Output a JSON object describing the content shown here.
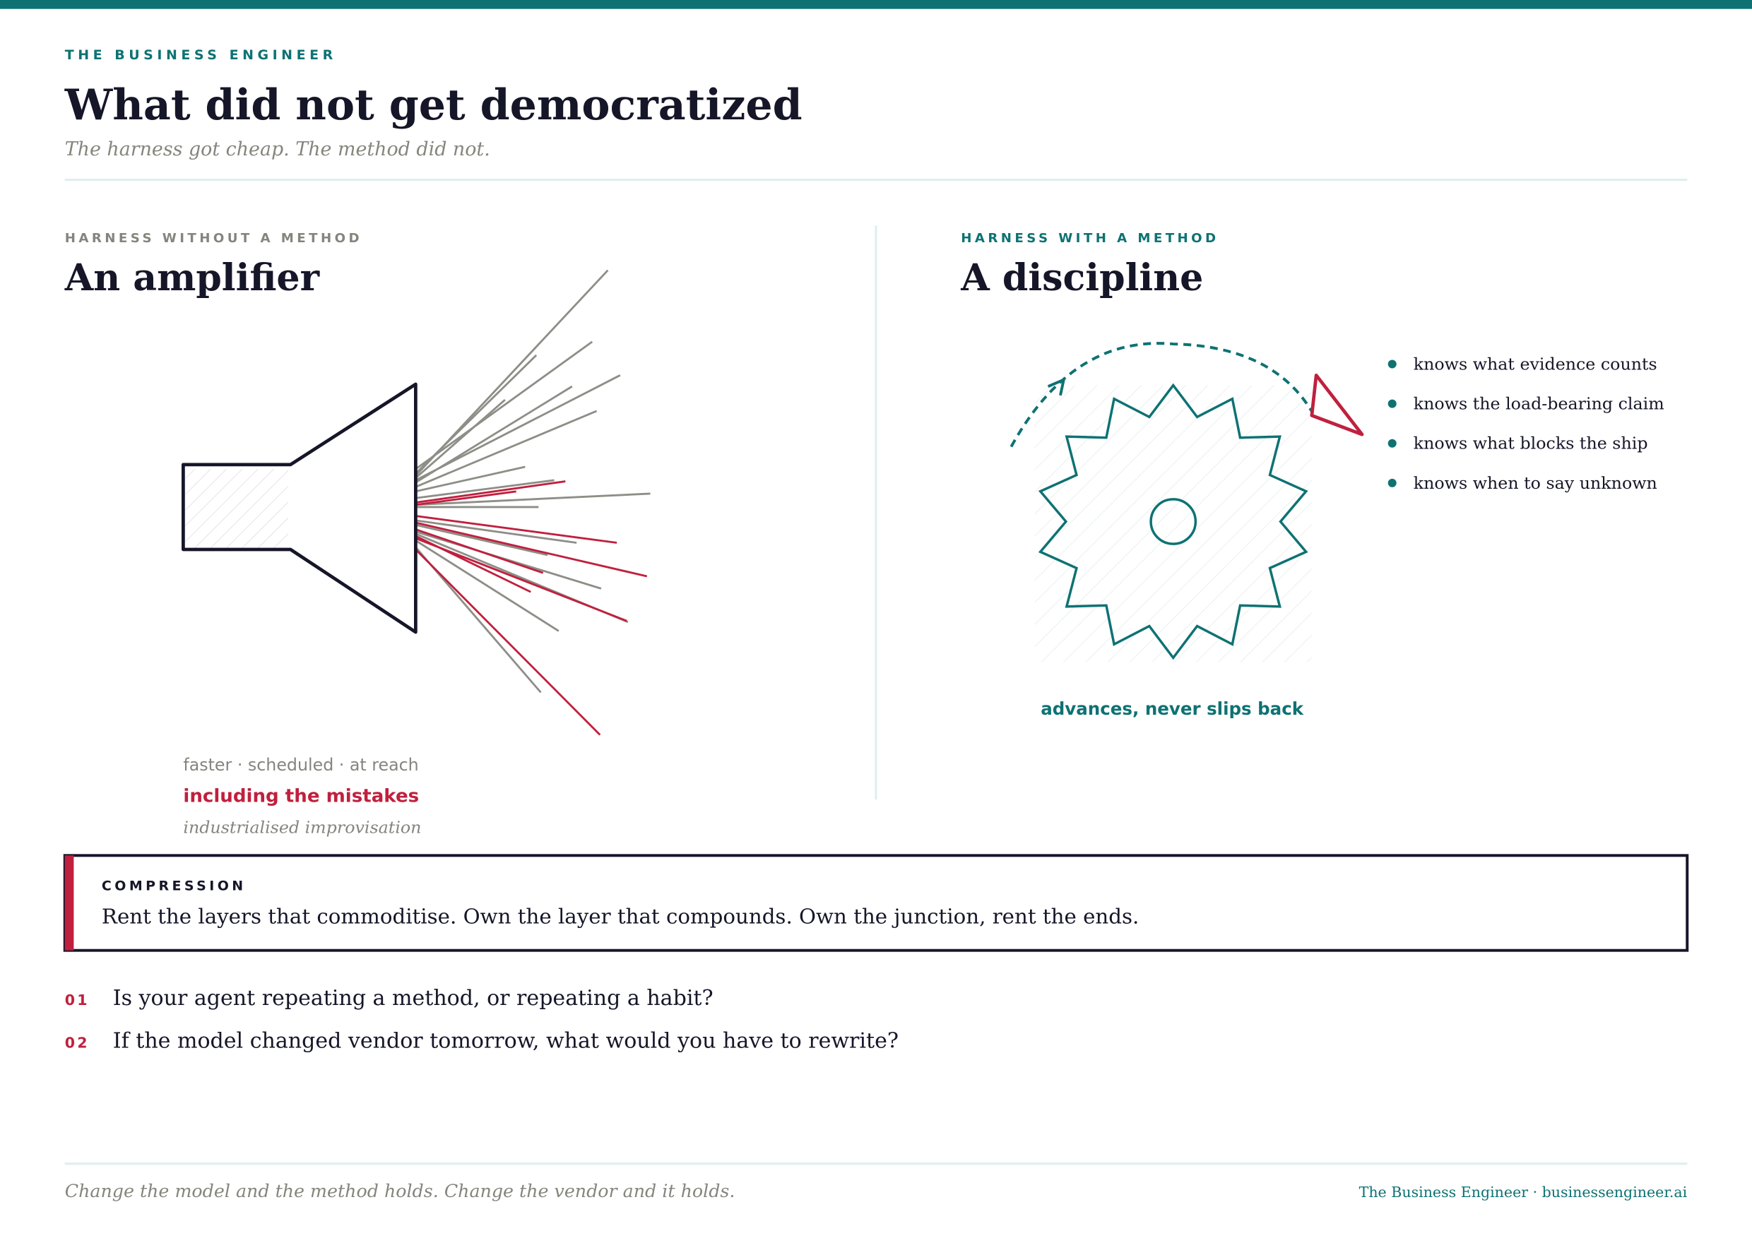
{
  "header": {
    "kicker": "THE BUSINESS ENGINEER",
    "title": "What did not get democratized",
    "subtitle": "The harness got cheap. The method did not."
  },
  "left": {
    "label": "HARNESS WITHOUT A METHOD",
    "title": "An amplifier",
    "caption": "faster · scheduled · at reach",
    "warning": "including the mistakes",
    "note": "industrialised improvisation"
  },
  "right": {
    "label": "HARNESS WITH A METHOD",
    "title": "A discipline",
    "bullets": [
      "knows what evidence counts",
      "knows the load-bearing claim",
      "knows what blocks the ship",
      "knows when to say unknown"
    ],
    "caption": "advances, never slips back"
  },
  "callout": {
    "label": "COMPRESSION",
    "text": "Rent the layers that commoditise. Own the layer that compounds. Own the junction, rent the ends."
  },
  "questions": [
    {
      "number": "01",
      "text": "Is your agent repeating a method, or repeating a habit?"
    },
    {
      "number": "02",
      "text": "If the model changed vendor tomorrow, what would you have to rewrite?"
    }
  ],
  "footer": {
    "left": "Change the model and the method holds. Change the vendor and it holds.",
    "right": "The Business Engineer · businessengineer.ai"
  }
}
